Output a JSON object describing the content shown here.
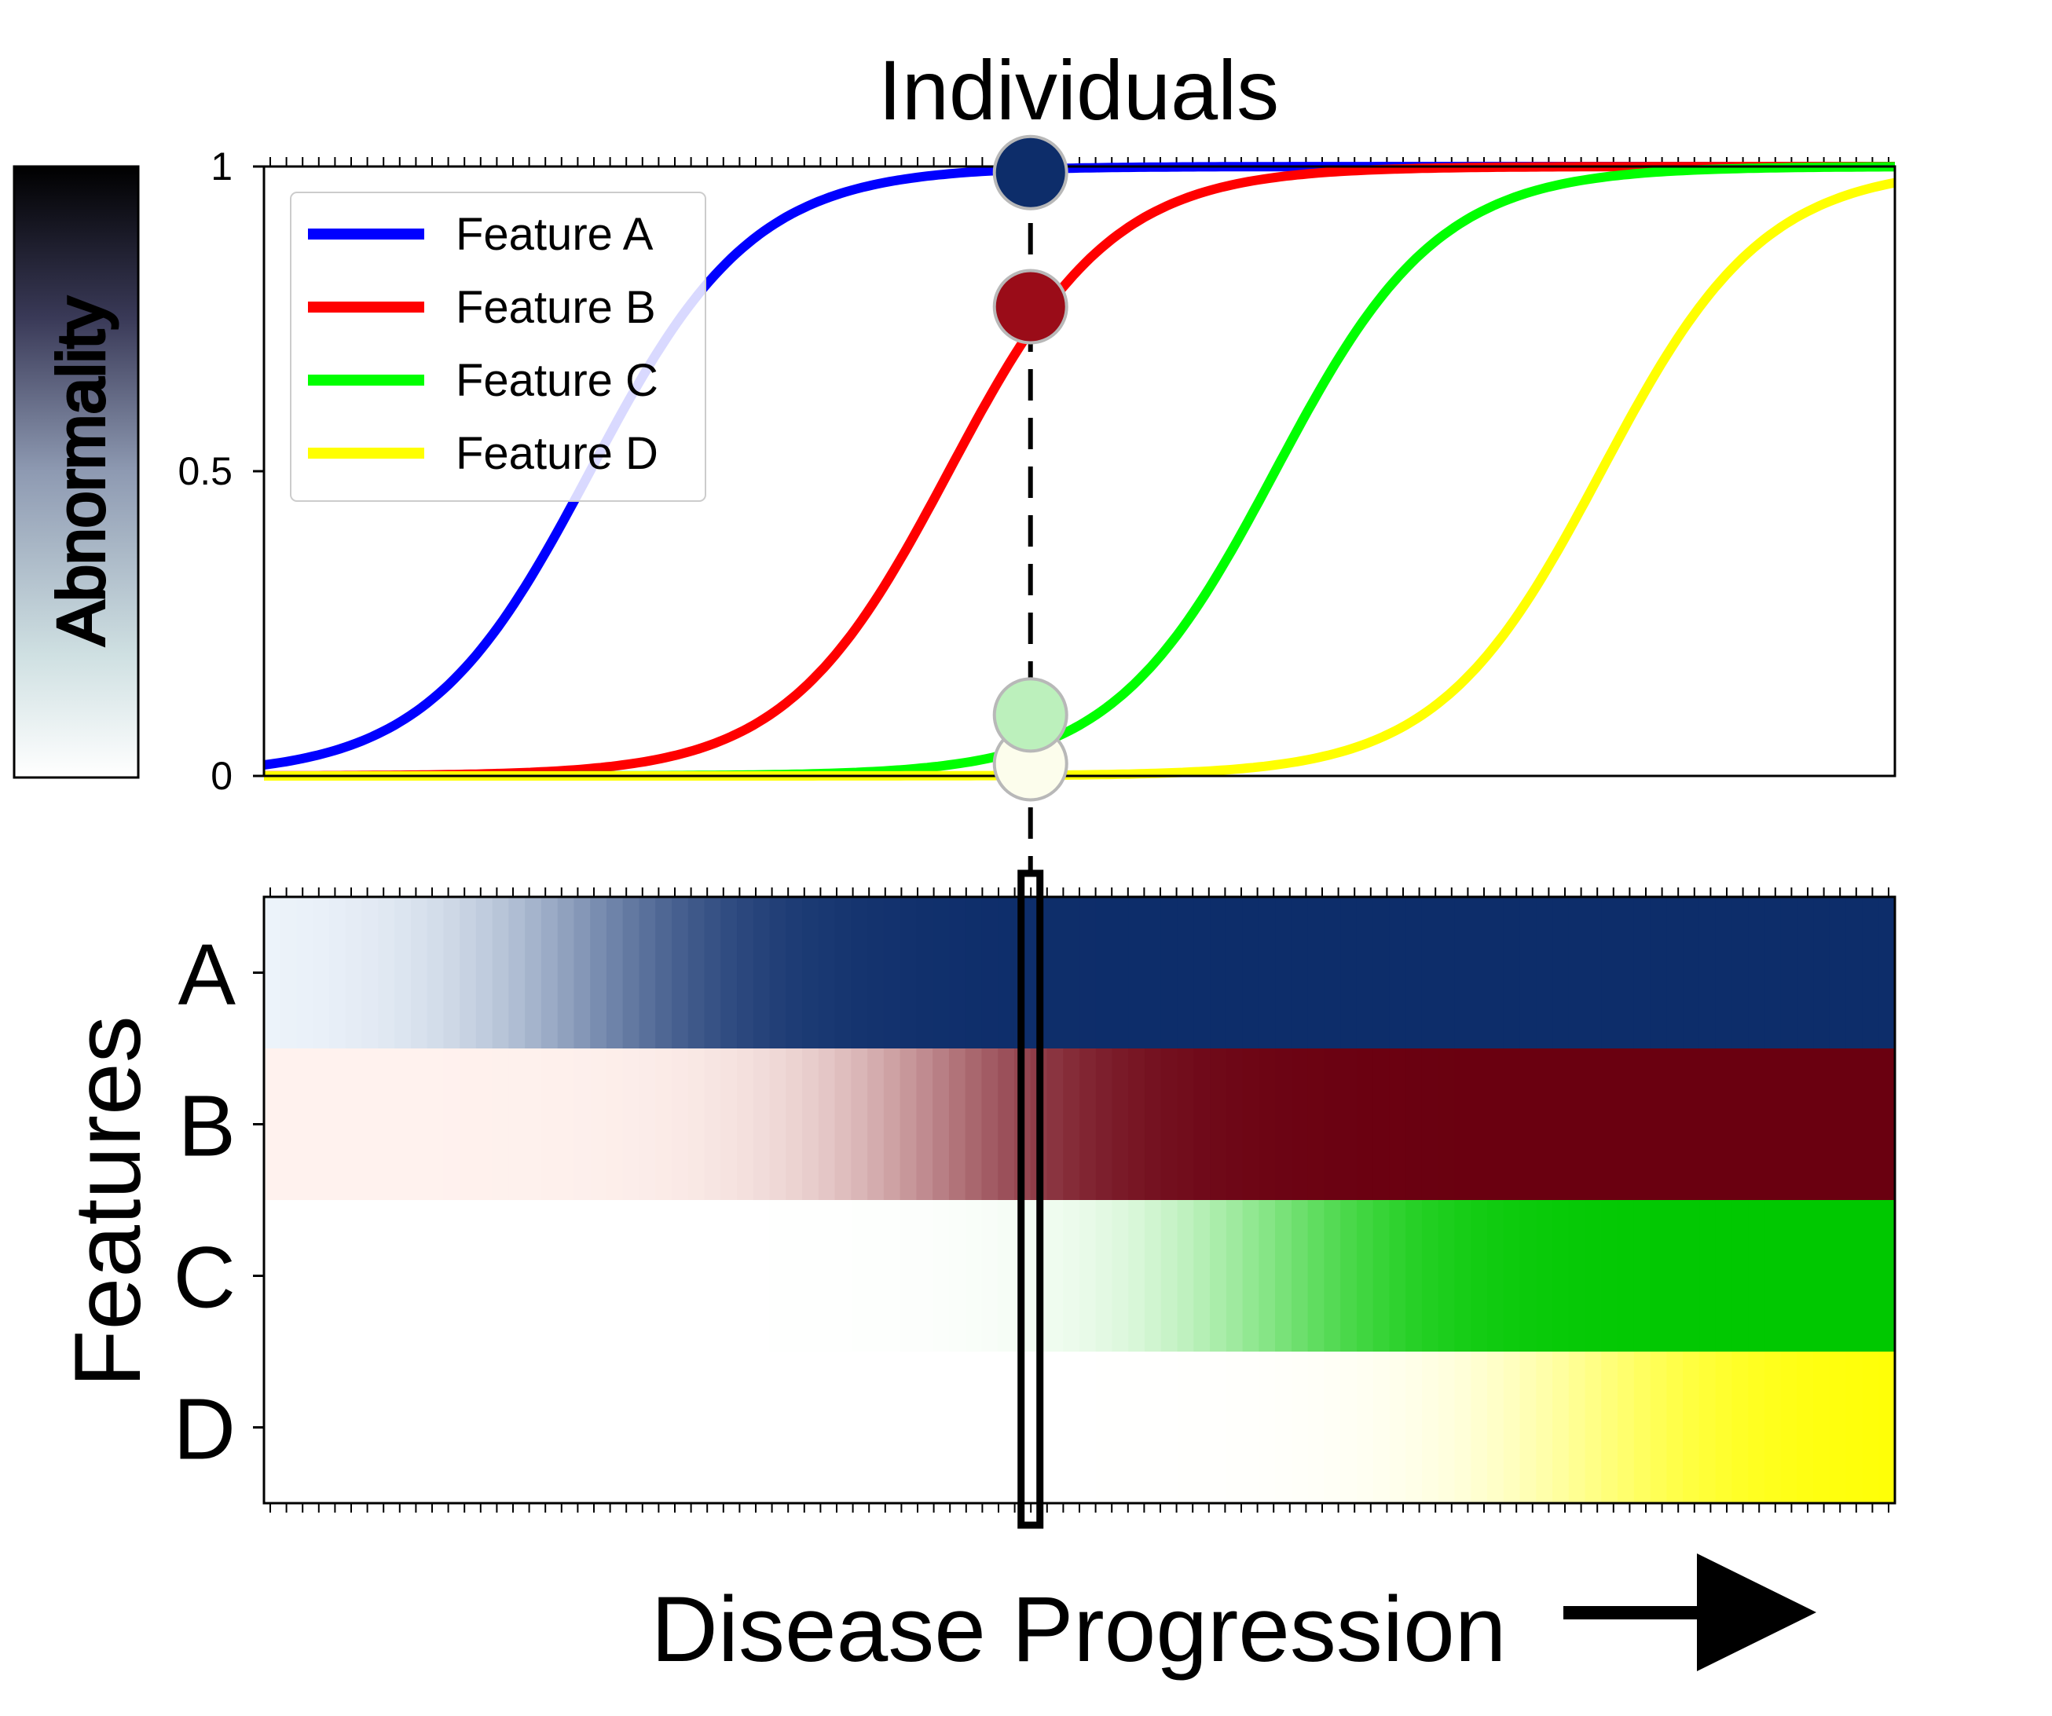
{
  "title": "Individuals",
  "colorbar_label": "Abnormality",
  "heatmap_ylabel": "Features",
  "xlabel": "Disease Progression",
  "chart_data": [
    {
      "type": "line",
      "title": "Individuals",
      "ylim": [
        0,
        1
      ],
      "yticks": [
        "0",
        "0.5",
        "1"
      ],
      "x_range": [
        0,
        1
      ],
      "legend_position": "top-left",
      "series": [
        {
          "name": "Feature A",
          "color": "#0000ff",
          "midpoint": 0.2,
          "k": 20
        },
        {
          "name": "Feature B",
          "color": "#ff0000",
          "midpoint": 0.42,
          "k": 20
        },
        {
          "name": "Feature C",
          "color": "#00ff00",
          "midpoint": 0.62,
          "k": 20
        },
        {
          "name": "Feature D",
          "color": "#ffff00",
          "midpoint": 0.82,
          "k": 20
        }
      ],
      "individual": {
        "x": 0.47,
        "points": [
          {
            "feature": "Feature A",
            "y": 0.99,
            "color": "#0d2d6a"
          },
          {
            "feature": "Feature B",
            "y": 0.77,
            "color": "#9a0c18"
          },
          {
            "feature": "Feature C",
            "y": 0.1,
            "color": "#bcf0bc"
          },
          {
            "feature": "Feature D",
            "y": 0.02,
            "color": "#fcfdec"
          }
        ]
      }
    },
    {
      "type": "heatmap",
      "rows": [
        "A",
        "B",
        "C",
        "D"
      ],
      "columns": 100,
      "colormaps": [
        [
          "#f1f7fd",
          "#0d2d6a"
        ],
        [
          "#fff2ee",
          "#6a0010"
        ],
        [
          "#ffffff",
          "#00c800"
        ],
        [
          "#ffffff",
          "#ffff00"
        ]
      ],
      "highlight_x": 0.47
    }
  ]
}
